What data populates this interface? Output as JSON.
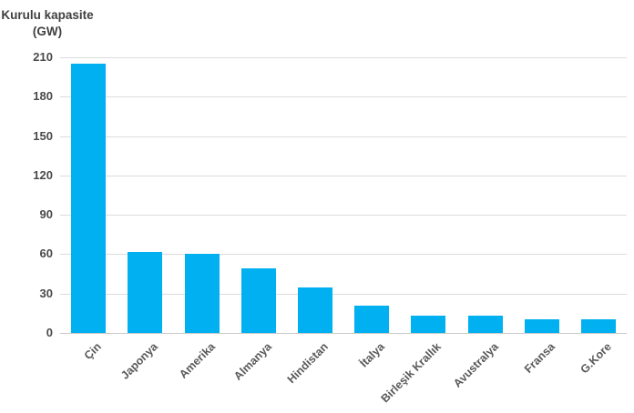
{
  "chart_data": {
    "type": "bar",
    "title_line1": "Kurulu kapasite",
    "title_line2": "(GW)",
    "ylabel": "Kurulu kapasite (GW)",
    "xlabel": "",
    "categories": [
      "Çin",
      "Japonya",
      "Amerika",
      "Almanya",
      "Hindistan",
      "İtalya",
      "Birleşik Krallık",
      "Avustralya",
      "Fransa",
      "G.Kore"
    ],
    "values": [
      205,
      62,
      60.5,
      49,
      35,
      21,
      13.5,
      13,
      10.6,
      10.4
    ],
    "ylim": [
      0,
      210
    ],
    "yticks": [
      0,
      30,
      60,
      90,
      120,
      150,
      180,
      210
    ],
    "grid": true,
    "legend_position": "none",
    "colors": {
      "bar": "#00B0F0",
      "gridline": "#DCDCDC",
      "axis_line": "#C9C9C9",
      "tick_label": "#4A4A4A",
      "x_label": "#595959",
      "title": "#3F3F3F"
    }
  }
}
